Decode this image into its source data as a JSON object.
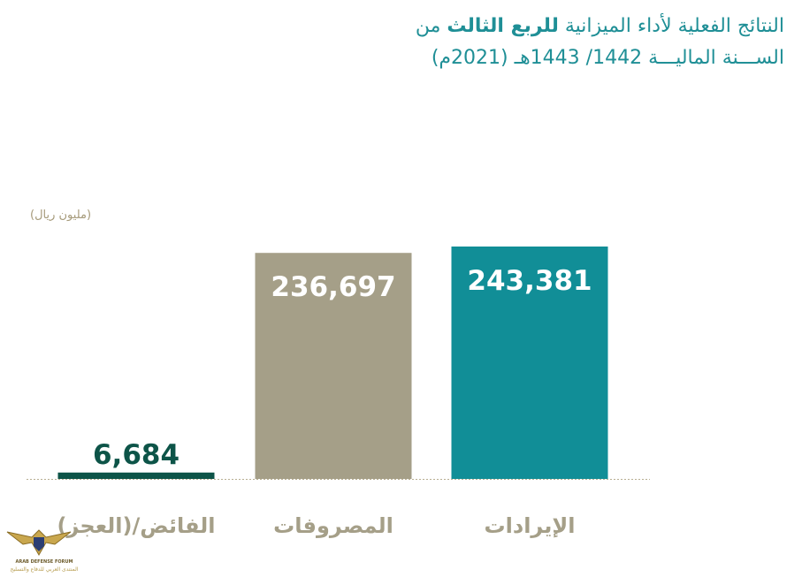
{
  "title": {
    "line1_part1": "النتائج الفعلية لأداء الميزانية",
    "line1_bold": "للربع الثالث",
    "line1_part2": "من",
    "line2": "الســـنة الماليـــة 1442/ 1443هـ (2021م)"
  },
  "colors": {
    "title": "#1f8f96",
    "unit": "#a69a7a",
    "revenue": "#118e97",
    "expenses": "#a59f88",
    "surplus": "#0d5448",
    "category_label": "#a59f88",
    "baseline": "#b8ae92"
  },
  "chart_data": {
    "type": "bar",
    "unit_label": "(مليون ريال)",
    "ylim": [
      0,
      243381
    ],
    "grid": false,
    "legend": "none",
    "categories": [
      "الإيرادات",
      "المصروفات",
      "الفائض/(العجز)"
    ],
    "values": [
      243381,
      236697,
      6684
    ],
    "value_labels": [
      "243,381",
      "236,697",
      "6,684"
    ],
    "bar_colors": [
      "#118e97",
      "#a59f88",
      "#0d5448"
    ],
    "label_colors": [
      "#ffffff",
      "#ffffff",
      "#0d5448"
    ]
  },
  "watermark": {
    "line1": "ARAB DEFENSE FORUM",
    "line2": "المنتدى العربي للدفاع والتسليح",
    "icon": "eagle-shield-icon"
  }
}
